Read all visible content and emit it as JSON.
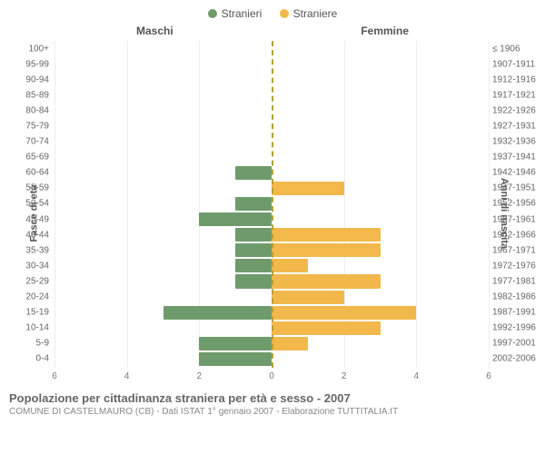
{
  "legend": {
    "male": {
      "label": "Stranieri",
      "color": "#6f9b6c"
    },
    "female": {
      "label": "Straniere",
      "color": "#f2b84b"
    }
  },
  "headers": {
    "left": "Maschi",
    "right": "Femmine"
  },
  "yaxis": {
    "left": "Fasce di età",
    "right": "Anni di nascita"
  },
  "xaxis": {
    "max": 6,
    "ticks": [
      6,
      4,
      2,
      0,
      2,
      4,
      6
    ]
  },
  "axis_dash_color": "#b8a030",
  "rows": [
    {
      "age": "100+",
      "birth": "≤ 1906",
      "m": 0,
      "f": 0
    },
    {
      "age": "95-99",
      "birth": "1907-1911",
      "m": 0,
      "f": 0
    },
    {
      "age": "90-94",
      "birth": "1912-1916",
      "m": 0,
      "f": 0
    },
    {
      "age": "85-89",
      "birth": "1917-1921",
      "m": 0,
      "f": 0
    },
    {
      "age": "80-84",
      "birth": "1922-1926",
      "m": 0,
      "f": 0
    },
    {
      "age": "75-79",
      "birth": "1927-1931",
      "m": 0,
      "f": 0
    },
    {
      "age": "70-74",
      "birth": "1932-1936",
      "m": 0,
      "f": 0
    },
    {
      "age": "65-69",
      "birth": "1937-1941",
      "m": 0,
      "f": 0
    },
    {
      "age": "60-64",
      "birth": "1942-1946",
      "m": 1,
      "f": 0
    },
    {
      "age": "55-59",
      "birth": "1947-1951",
      "m": 0,
      "f": 2
    },
    {
      "age": "50-54",
      "birth": "1952-1956",
      "m": 1,
      "f": 0
    },
    {
      "age": "45-49",
      "birth": "1957-1961",
      "m": 2,
      "f": 0
    },
    {
      "age": "40-44",
      "birth": "1962-1966",
      "m": 1,
      "f": 3
    },
    {
      "age": "35-39",
      "birth": "1967-1971",
      "m": 1,
      "f": 3
    },
    {
      "age": "30-34",
      "birth": "1972-1976",
      "m": 1,
      "f": 1
    },
    {
      "age": "25-29",
      "birth": "1977-1981",
      "m": 1,
      "f": 3
    },
    {
      "age": "20-24",
      "birth": "1982-1986",
      "m": 0,
      "f": 2
    },
    {
      "age": "15-19",
      "birth": "1987-1991",
      "m": 3,
      "f": 4
    },
    {
      "age": "10-14",
      "birth": "1992-1996",
      "m": 0,
      "f": 3
    },
    {
      "age": "5-9",
      "birth": "1997-2001",
      "m": 2,
      "f": 1
    },
    {
      "age": "0-4",
      "birth": "2002-2006",
      "m": 2,
      "f": 0
    }
  ],
  "footer": {
    "title": "Popolazione per cittadinanza straniera per età e sesso - 2007",
    "subtitle": "COMUNE DI CASTELMAURO (CB) - Dati ISTAT 1° gennaio 2007 - Elaborazione TUTTITALIA.IT"
  }
}
